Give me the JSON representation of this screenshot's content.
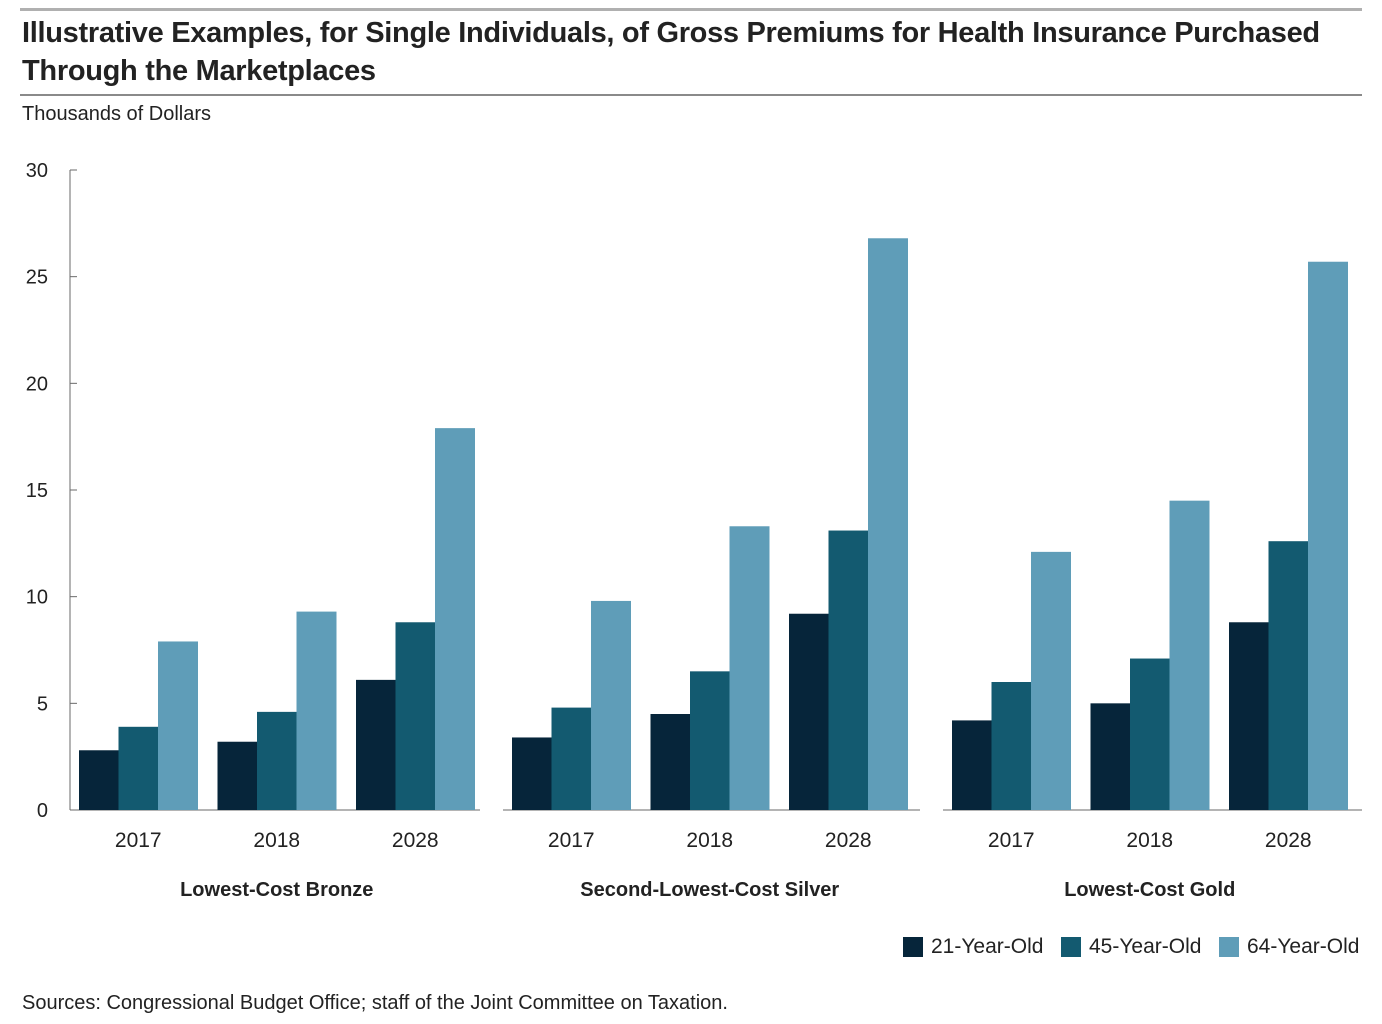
{
  "title": "Illustrative Examples, for Single Individuals, of Gross Premiums for Health Insurance Purchased Through the Marketplaces",
  "units_label": "Thousands of Dollars",
  "source": "Sources: Congressional Budget Office; staff of the Joint Committee on Taxation.",
  "colors": {
    "21-Year-Old": "#06253a",
    "45-Year-Old": "#135a70",
    "64-Year-Old": "#5f9db8"
  },
  "chart_data": {
    "type": "bar",
    "title": "Illustrative Examples, for Single Individuals, of Gross Premiums for Health Insurance Purchased Through the Marketplaces",
    "ylabel": "Thousands of Dollars",
    "ylim": [
      0,
      30
    ],
    "yticks": [
      0,
      5,
      10,
      15,
      20,
      25,
      30
    ],
    "grid": false,
    "legend_position": "bottom-right",
    "series_names": [
      "21-Year-Old",
      "45-Year-Old",
      "64-Year-Old"
    ],
    "panels": [
      {
        "name": "Lowest-Cost Bronze",
        "categories": [
          "2017",
          "2018",
          "2028"
        ],
        "series": [
          {
            "name": "21-Year-Old",
            "values": [
              2.8,
              3.2,
              6.1
            ]
          },
          {
            "name": "45-Year-Old",
            "values": [
              3.9,
              4.6,
              8.8
            ]
          },
          {
            "name": "64-Year-Old",
            "values": [
              7.9,
              9.3,
              17.9
            ]
          }
        ]
      },
      {
        "name": "Second-Lowest-Cost Silver",
        "categories": [
          "2017",
          "2018",
          "2028"
        ],
        "series": [
          {
            "name": "21-Year-Old",
            "values": [
              3.4,
              4.5,
              9.2
            ]
          },
          {
            "name": "45-Year-Old",
            "values": [
              4.8,
              6.5,
              13.1
            ]
          },
          {
            "name": "64-Year-Old",
            "values": [
              9.8,
              13.3,
              26.8
            ]
          }
        ]
      },
      {
        "name": "Lowest-Cost Gold",
        "categories": [
          "2017",
          "2018",
          "2028"
        ],
        "series": [
          {
            "name": "21-Year-Old",
            "values": [
              4.2,
              5.0,
              8.8
            ]
          },
          {
            "name": "45-Year-Old",
            "values": [
              6.0,
              7.1,
              12.6
            ]
          },
          {
            "name": "64-Year-Old",
            "values": [
              12.1,
              14.5,
              25.7
            ]
          }
        ]
      }
    ]
  }
}
